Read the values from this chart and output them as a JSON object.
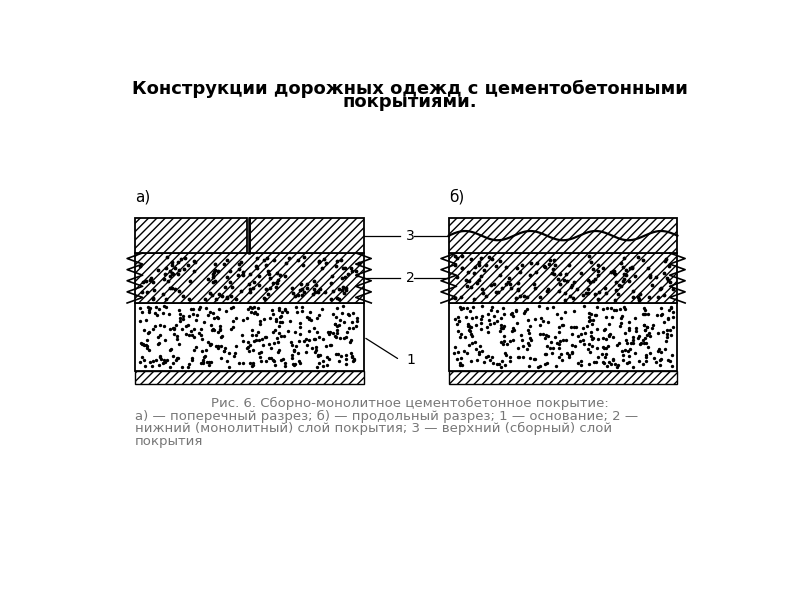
{
  "title_line1": "Конструкции дорожных одежд с цементобетонными",
  "title_line2": "покрытиями.",
  "title_fontsize": 13,
  "caption_line1": "Рис. 6. Сборно-монолитное цементобетонное покрытие:",
  "caption_line2": "а) — поперечный разрез; б) — продольный разрез; 1 — основание; 2 —",
  "caption_line3": "нижний (монолитный) слой покрытия; 3 — верхний (сборный) слой",
  "caption_line4": "покрытия",
  "label_a": "а)",
  "label_b": "б)",
  "bg_color": "#ffffff"
}
